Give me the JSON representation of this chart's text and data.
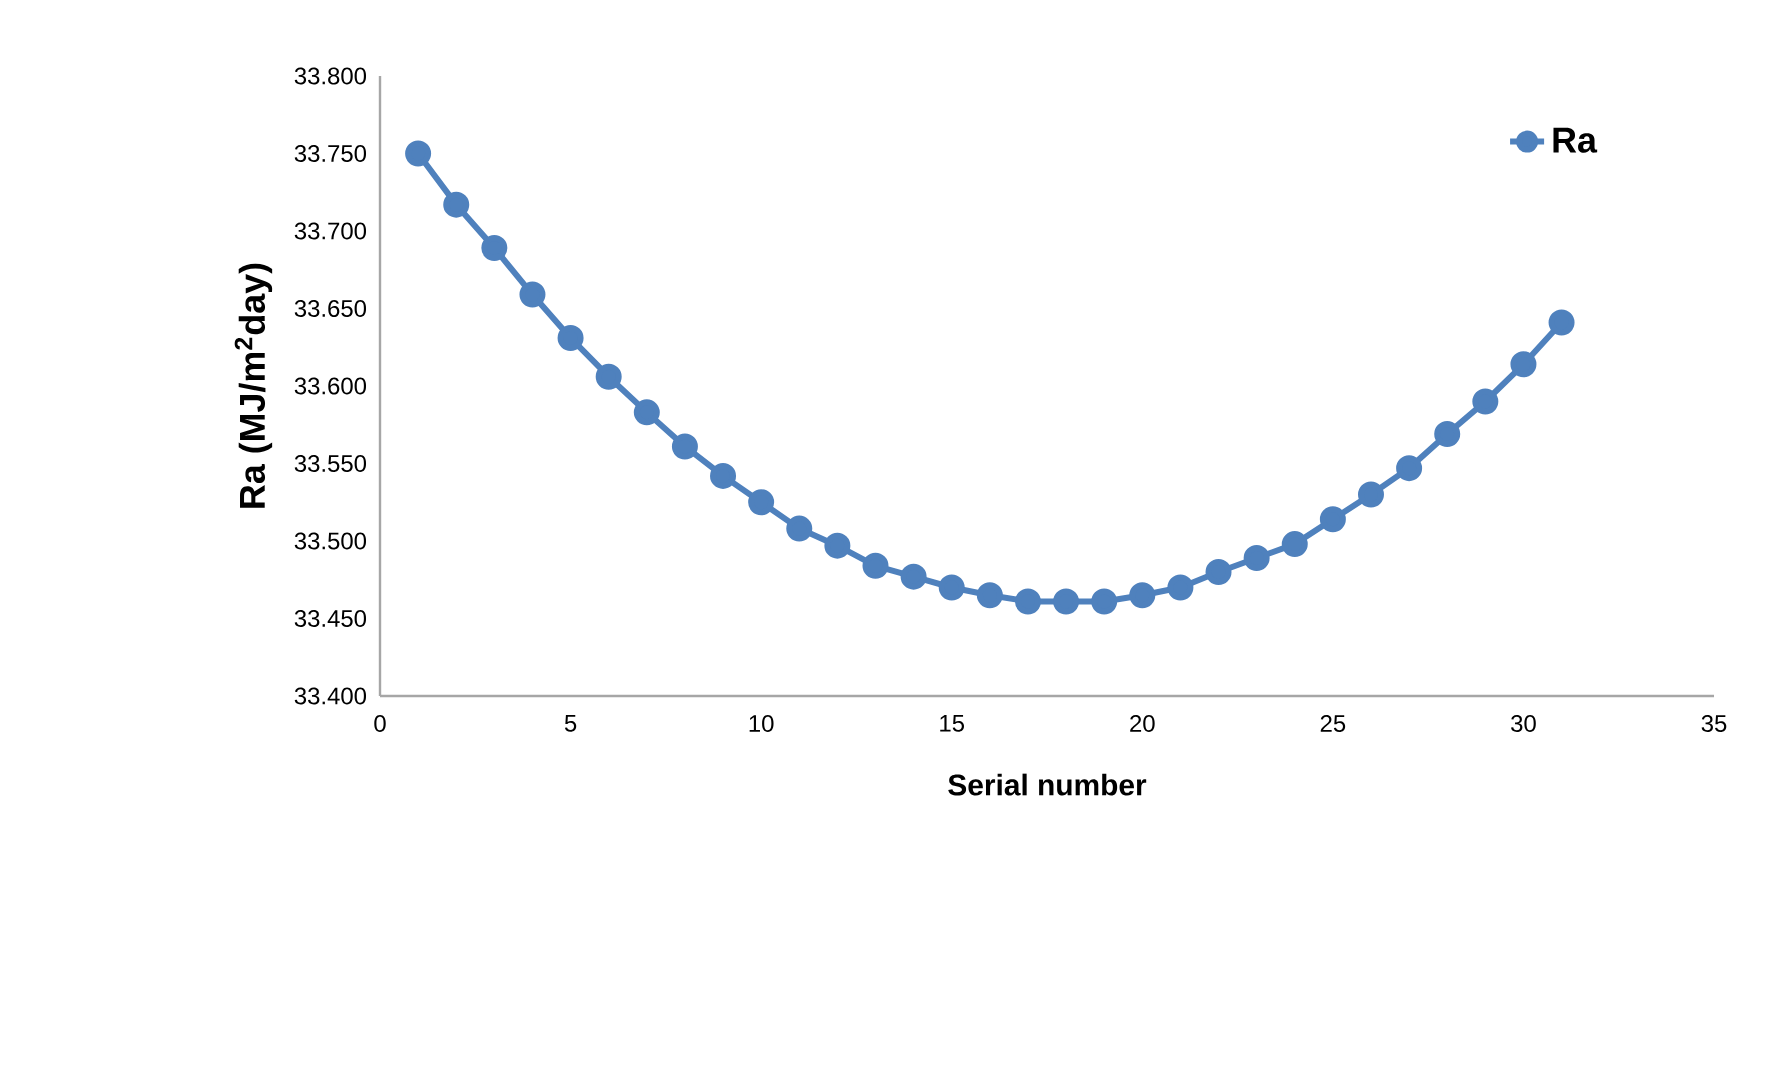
{
  "chart_data": {
    "type": "line",
    "xlabel": "Serial number",
    "ylabel": "Ra (MJ/m$^{2}$day)",
    "x": [
      1,
      2,
      3,
      4,
      5,
      6,
      7,
      8,
      9,
      10,
      11,
      12,
      13,
      14,
      15,
      16,
      17,
      18,
      19,
      20,
      21,
      22,
      23,
      24,
      25,
      26,
      27,
      28,
      29,
      30,
      31
    ],
    "series": [
      {
        "name": "Ra",
        "color": "#4f81bd",
        "values": [
          33.75,
          33.717,
          33.689,
          33.659,
          33.631,
          33.606,
          33.583,
          33.561,
          33.542,
          33.525,
          33.508,
          33.497,
          33.484,
          33.477,
          33.47,
          33.465,
          33.461,
          33.461,
          33.461,
          33.465,
          33.47,
          33.48,
          33.489,
          33.498,
          33.514,
          33.53,
          33.547,
          33.569,
          33.59,
          33.614,
          33.641
        ]
      }
    ],
    "xlim": [
      0,
      35
    ],
    "ylim": [
      33.4,
      33.8
    ],
    "xticks": [
      0,
      5,
      10,
      15,
      20,
      25,
      30,
      35
    ],
    "yticks": [
      {
        "value": 33.4,
        "label": "33.400"
      },
      {
        "value": 33.45,
        "label": "33.450"
      },
      {
        "value": 33.5,
        "label": "33.500"
      },
      {
        "value": 33.55,
        "label": "33.550"
      },
      {
        "value": 33.6,
        "label": "33.600"
      },
      {
        "value": 33.65,
        "label": "33.650"
      },
      {
        "value": 33.7,
        "label": "33.700"
      },
      {
        "value": 33.75,
        "label": "33.750"
      },
      {
        "value": 33.8,
        "label": "33.800"
      }
    ],
    "legend": "top right",
    "marker": "circle",
    "line_style": "solid"
  }
}
